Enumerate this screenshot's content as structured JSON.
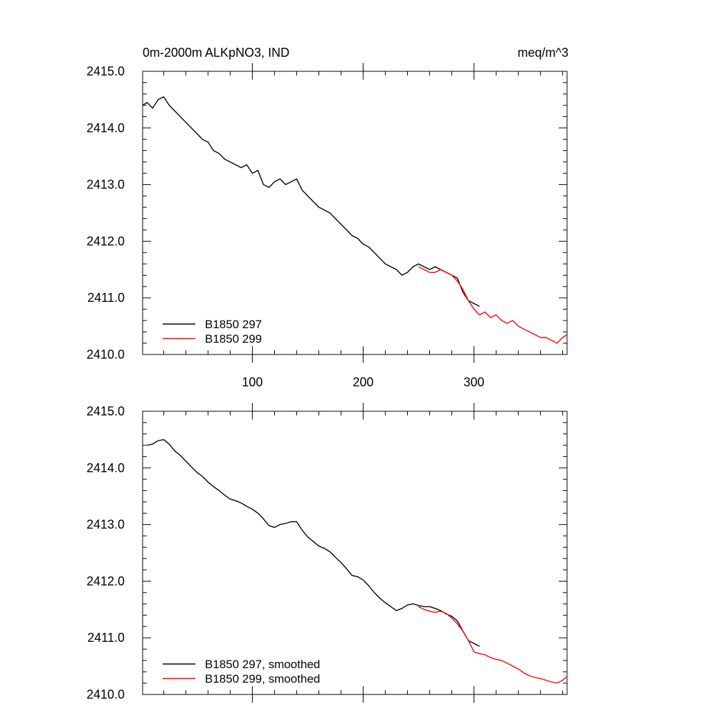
{
  "title_left": "0m-2000m ALKpNO3, IND",
  "title_right": "meq/m^3",
  "chart_data": [
    {
      "type": "line",
      "panel": "top",
      "title": "0m-2000m ALKpNO3, IND",
      "units": "meq/m^3",
      "xlim": [
        1,
        384
      ],
      "ylim": [
        2410.0,
        2415.0
      ],
      "xticks": [
        "100",
        "200",
        "300"
      ],
      "xtick_values": [
        100,
        200,
        300
      ],
      "yticks": [
        "2410.0",
        "2411.0",
        "2412.0",
        "2413.0",
        "2414.0",
        "2415.0"
      ],
      "ytick_values": [
        2410,
        2411,
        2412,
        2413,
        2414,
        2415
      ],
      "legend_position": "bottom-left",
      "grid": false,
      "series": [
        {
          "name": "B1850 297",
          "color": "#000000",
          "x": [
            1,
            5,
            10,
            15,
            20,
            25,
            30,
            35,
            40,
            45,
            50,
            55,
            60,
            65,
            70,
            75,
            80,
            85,
            90,
            95,
            100,
            105,
            110,
            115,
            120,
            125,
            130,
            135,
            140,
            145,
            150,
            155,
            160,
            165,
            170,
            175,
            180,
            185,
            190,
            195,
            200,
            205,
            210,
            215,
            220,
            225,
            230,
            235,
            240,
            245,
            250,
            255,
            260,
            265,
            270,
            275,
            280,
            285,
            290,
            295,
            300,
            305
          ],
          "y": [
            2414.4,
            2414.45,
            2414.35,
            2414.5,
            2414.55,
            2414.4,
            2414.3,
            2414.2,
            2414.1,
            2414.0,
            2413.9,
            2413.8,
            2413.75,
            2413.6,
            2413.55,
            2413.45,
            2413.4,
            2413.35,
            2413.3,
            2413.35,
            2413.2,
            2413.25,
            2413.0,
            2412.95,
            2413.05,
            2413.1,
            2413.0,
            2413.05,
            2413.1,
            2412.9,
            2412.8,
            2412.7,
            2412.6,
            2412.55,
            2412.5,
            2412.4,
            2412.3,
            2412.2,
            2412.1,
            2412.05,
            2411.95,
            2411.9,
            2411.8,
            2411.7,
            2411.6,
            2411.55,
            2411.5,
            2411.4,
            2411.45,
            2411.55,
            2411.6,
            2411.55,
            2411.5,
            2411.55,
            2411.5,
            2411.45,
            2411.4,
            2411.35,
            2411.1,
            2410.95,
            2410.9,
            2410.85
          ]
        },
        {
          "name": "B1850 299",
          "color": "#ff0000",
          "x": [
            250,
            255,
            260,
            265,
            270,
            275,
            280,
            285,
            290,
            295,
            300,
            305,
            310,
            315,
            320,
            325,
            330,
            335,
            340,
            345,
            350,
            355,
            360,
            365,
            370,
            375,
            380,
            384
          ],
          "y": [
            2411.55,
            2411.5,
            2411.45,
            2411.45,
            2411.5,
            2411.45,
            2411.4,
            2411.3,
            2411.15,
            2410.95,
            2410.8,
            2410.7,
            2410.75,
            2410.65,
            2410.7,
            2410.6,
            2410.55,
            2410.6,
            2410.5,
            2410.45,
            2410.4,
            2410.35,
            2410.3,
            2410.3,
            2410.25,
            2410.2,
            2410.3,
            2410.35
          ]
        }
      ]
    },
    {
      "type": "line",
      "panel": "bottom",
      "xlim": [
        1,
        384
      ],
      "ylim": [
        2410.0,
        2415.0
      ],
      "yticks": [
        "2410.0",
        "2411.0",
        "2412.0",
        "2413.0",
        "2414.0",
        "2415.0"
      ],
      "ytick_values": [
        2410,
        2411,
        2412,
        2413,
        2414,
        2415
      ],
      "legend_position": "bottom-left",
      "grid": false,
      "series": [
        {
          "name": "B1850 297, smoothed",
          "color": "#000000",
          "x": [
            5,
            10,
            15,
            20,
            25,
            30,
            35,
            40,
            45,
            50,
            55,
            60,
            65,
            70,
            75,
            80,
            85,
            90,
            95,
            100,
            105,
            110,
            115,
            120,
            125,
            130,
            135,
            140,
            145,
            150,
            155,
            160,
            165,
            170,
            175,
            180,
            185,
            190,
            195,
            200,
            205,
            210,
            215,
            220,
            225,
            230,
            235,
            240,
            245,
            250,
            255,
            260,
            265,
            270,
            275,
            280,
            285,
            290,
            295,
            300,
            305
          ],
          "y": [
            2414.4,
            2414.42,
            2414.48,
            2414.5,
            2414.42,
            2414.3,
            2414.22,
            2414.12,
            2414.02,
            2413.92,
            2413.85,
            2413.75,
            2413.67,
            2413.6,
            2413.52,
            2413.45,
            2413.42,
            2413.38,
            2413.32,
            2413.27,
            2413.2,
            2413.1,
            2412.98,
            2412.95,
            2413.0,
            2413.02,
            2413.05,
            2413.05,
            2412.9,
            2412.78,
            2412.7,
            2412.62,
            2412.58,
            2412.52,
            2412.42,
            2412.33,
            2412.22,
            2412.1,
            2412.08,
            2412.02,
            2411.92,
            2411.8,
            2411.7,
            2411.62,
            2411.55,
            2411.48,
            2411.52,
            2411.58,
            2411.6,
            2411.57,
            2411.55,
            2411.55,
            2411.52,
            2411.48,
            2411.42,
            2411.38,
            2411.3,
            2411.12,
            2410.95,
            2410.9,
            2410.85
          ]
        },
        {
          "name": "B1850 299, smoothed",
          "color": "#ff0000",
          "x": [
            250,
            255,
            260,
            265,
            270,
            275,
            280,
            285,
            290,
            295,
            300,
            305,
            310,
            315,
            320,
            325,
            330,
            335,
            340,
            345,
            350,
            355,
            360,
            365,
            370,
            375,
            380,
            384
          ],
          "y": [
            2411.55,
            2411.5,
            2411.47,
            2411.45,
            2411.47,
            2411.43,
            2411.35,
            2411.25,
            2411.12,
            2410.95,
            2410.75,
            2410.72,
            2410.7,
            2410.65,
            2410.62,
            2410.6,
            2410.55,
            2410.5,
            2410.45,
            2410.38,
            2410.33,
            2410.3,
            2410.28,
            2410.25,
            2410.22,
            2410.2,
            2410.25,
            2410.32
          ]
        }
      ]
    }
  ]
}
